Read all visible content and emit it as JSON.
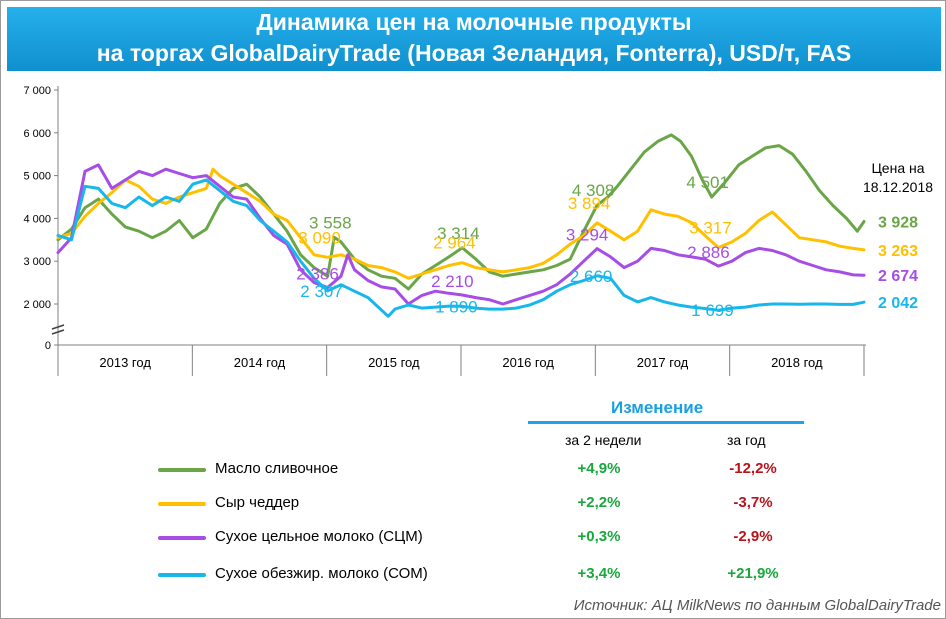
{
  "title_line1": "Динамика цен на молочные продукты",
  "title_line2": "на торгах GlobalDairyTrade (Новая Зеландия, Fonterra), USD/т, FAS",
  "price_note": [
    "Цена на",
    "18.12.2018"
  ],
  "source": "Источник: АЦ MilkNews по данным GlobalDairyTrade",
  "table": {
    "header": "Изменение",
    "col_2weeks": "за 2 недели",
    "col_year": "за год",
    "positive_color": "#18a83b",
    "negative_color": "#b8141b"
  },
  "chart_data": {
    "type": "line",
    "x_unit": "year",
    "xlim": [
      2013.0,
      2018.98
    ],
    "ylim": [
      0,
      7000
    ],
    "yticks": [
      0,
      2000,
      3000,
      4000,
      5000,
      6000,
      7000
    ],
    "ytick_labels": [
      "0",
      "2 000",
      "3 000",
      "4 000",
      "5 000",
      "6 000",
      "7 000"
    ],
    "y_axis_break": true,
    "x_categories": [
      "2013 год",
      "2014 год",
      "2015 год",
      "2016 год",
      "2017 год",
      "2018 год"
    ],
    "legend_position": "bottom-left",
    "series": [
      {
        "name": "Масло сливочное",
        "color": "#6aa647",
        "change_2weeks": "+4,9%",
        "change_year": "-12,2%",
        "points": [
          [
            2013.0,
            3500
          ],
          [
            2013.1,
            3750
          ],
          [
            2013.2,
            4250
          ],
          [
            2013.3,
            4450
          ],
          [
            2013.4,
            4100
          ],
          [
            2013.5,
            3800
          ],
          [
            2013.6,
            3700
          ],
          [
            2013.7,
            3550
          ],
          [
            2013.8,
            3700
          ],
          [
            2013.9,
            3950
          ],
          [
            2014.0,
            3550
          ],
          [
            2014.1,
            3750
          ],
          [
            2014.2,
            4350
          ],
          [
            2014.3,
            4700
          ],
          [
            2014.4,
            4800
          ],
          [
            2014.5,
            4500
          ],
          [
            2014.6,
            4100
          ],
          [
            2014.7,
            3700
          ],
          [
            2014.8,
            3150
          ],
          [
            2014.9,
            2850
          ],
          [
            2015.0,
            2650
          ],
          [
            2015.05,
            3558
          ],
          [
            2015.1,
            3450
          ],
          [
            2015.2,
            3050
          ],
          [
            2015.3,
            2800
          ],
          [
            2015.4,
            2650
          ],
          [
            2015.5,
            2600
          ],
          [
            2015.6,
            2350
          ],
          [
            2015.7,
            2700
          ],
          [
            2015.8,
            2900
          ],
          [
            2015.9,
            3100
          ],
          [
            2016.0,
            3314
          ],
          [
            2016.1,
            3050
          ],
          [
            2016.2,
            2750
          ],
          [
            2016.3,
            2650
          ],
          [
            2016.4,
            2700
          ],
          [
            2016.5,
            2750
          ],
          [
            2016.6,
            2800
          ],
          [
            2016.7,
            2900
          ],
          [
            2016.8,
            3050
          ],
          [
            2016.9,
            3700
          ],
          [
            2017.0,
            4308
          ],
          [
            2017.08,
            4500
          ],
          [
            2017.15,
            4750
          ],
          [
            2017.25,
            5150
          ],
          [
            2017.35,
            5550
          ],
          [
            2017.45,
            5800
          ],
          [
            2017.55,
            5950
          ],
          [
            2017.62,
            5800
          ],
          [
            2017.7,
            5450
          ],
          [
            2017.78,
            4900
          ],
          [
            2017.85,
            4501
          ],
          [
            2017.95,
            4850
          ],
          [
            2018.05,
            5250
          ],
          [
            2018.15,
            5450
          ],
          [
            2018.25,
            5650
          ],
          [
            2018.35,
            5700
          ],
          [
            2018.45,
            5500
          ],
          [
            2018.55,
            5100
          ],
          [
            2018.65,
            4650
          ],
          [
            2018.75,
            4300
          ],
          [
            2018.85,
            4000
          ],
          [
            2018.93,
            3700
          ],
          [
            2018.98,
            3928
          ]
        ],
        "labels": [
          {
            "x": 2015.05,
            "y": 3558,
            "text": "3 558"
          },
          {
            "x": 2016.0,
            "y": 3314,
            "text": "3 314"
          },
          {
            "x": 2017.0,
            "y": 4308,
            "text": "4 308"
          },
          {
            "x": 2017.85,
            "y": 4501,
            "text": "4 501"
          },
          {
            "x": 2018.98,
            "y": 3928,
            "text": "3 928",
            "final": true
          }
        ]
      },
      {
        "name": "Сыр чеддер",
        "color": "#ffc000",
        "change_2weeks": "+2,2%",
        "change_year": "-3,7%",
        "points": [
          [
            2013.0,
            3550
          ],
          [
            2013.1,
            3650
          ],
          [
            2013.2,
            4050
          ],
          [
            2013.3,
            4350
          ],
          [
            2013.4,
            4600
          ],
          [
            2013.5,
            4900
          ],
          [
            2013.6,
            4750
          ],
          [
            2013.7,
            4450
          ],
          [
            2013.8,
            4350
          ],
          [
            2013.9,
            4500
          ],
          [
            2014.0,
            4600
          ],
          [
            2014.1,
            4700
          ],
          [
            2014.15,
            5150
          ],
          [
            2014.2,
            5000
          ],
          [
            2014.3,
            4800
          ],
          [
            2014.4,
            4600
          ],
          [
            2014.5,
            4400
          ],
          [
            2014.6,
            4100
          ],
          [
            2014.7,
            3950
          ],
          [
            2014.8,
            3550
          ],
          [
            2014.9,
            3150
          ],
          [
            2015.0,
            3090
          ],
          [
            2015.1,
            3150
          ],
          [
            2015.2,
            3050
          ],
          [
            2015.3,
            2900
          ],
          [
            2015.4,
            2850
          ],
          [
            2015.5,
            2750
          ],
          [
            2015.6,
            2600
          ],
          [
            2015.7,
            2700
          ],
          [
            2015.8,
            2800
          ],
          [
            2015.9,
            2900
          ],
          [
            2016.0,
            2964
          ],
          [
            2016.1,
            2850
          ],
          [
            2016.2,
            2800
          ],
          [
            2016.3,
            2750
          ],
          [
            2016.4,
            2800
          ],
          [
            2016.5,
            2850
          ],
          [
            2016.6,
            2950
          ],
          [
            2016.7,
            3150
          ],
          [
            2016.8,
            3400
          ],
          [
            2016.9,
            3600
          ],
          [
            2017.0,
            3894
          ],
          [
            2017.1,
            3700
          ],
          [
            2017.2,
            3500
          ],
          [
            2017.3,
            3700
          ],
          [
            2017.4,
            4200
          ],
          [
            2017.5,
            4100
          ],
          [
            2017.6,
            4050
          ],
          [
            2017.7,
            3900
          ],
          [
            2017.8,
            3600
          ],
          [
            2017.9,
            3317
          ],
          [
            2018.0,
            3450
          ],
          [
            2018.1,
            3650
          ],
          [
            2018.2,
            3950
          ],
          [
            2018.3,
            4150
          ],
          [
            2018.4,
            3850
          ],
          [
            2018.5,
            3550
          ],
          [
            2018.6,
            3500
          ],
          [
            2018.7,
            3450
          ],
          [
            2018.8,
            3350
          ],
          [
            2018.9,
            3300
          ],
          [
            2018.98,
            3263
          ]
        ],
        "labels": [
          {
            "x": 2015.0,
            "y": 3090,
            "text": "3 090"
          },
          {
            "x": 2016.0,
            "y": 2964,
            "text": "2 964"
          },
          {
            "x": 2017.0,
            "y": 3894,
            "text": "3 894"
          },
          {
            "x": 2017.9,
            "y": 3317,
            "text": "3 317"
          },
          {
            "x": 2018.98,
            "y": 3263,
            "text": "3 263",
            "final": true
          }
        ]
      },
      {
        "name": "Сухое цельное молоко (СЦМ)",
        "color": "#a64de6",
        "change_2weeks": "+0,3%",
        "change_year": "-2,9%",
        "points": [
          [
            2013.0,
            3200
          ],
          [
            2013.1,
            3550
          ],
          [
            2013.2,
            5100
          ],
          [
            2013.3,
            5250
          ],
          [
            2013.4,
            4700
          ],
          [
            2013.5,
            4900
          ],
          [
            2013.6,
            5100
          ],
          [
            2013.7,
            5000
          ],
          [
            2013.8,
            5150
          ],
          [
            2013.9,
            5050
          ],
          [
            2014.0,
            4950
          ],
          [
            2014.1,
            5000
          ],
          [
            2014.2,
            4750
          ],
          [
            2014.3,
            4500
          ],
          [
            2014.4,
            4450
          ],
          [
            2014.5,
            4000
          ],
          [
            2014.6,
            3600
          ],
          [
            2014.7,
            3400
          ],
          [
            2014.8,
            2800
          ],
          [
            2014.9,
            2500
          ],
          [
            2015.0,
            2386
          ],
          [
            2015.1,
            2650
          ],
          [
            2015.15,
            3150
          ],
          [
            2015.2,
            2800
          ],
          [
            2015.3,
            2550
          ],
          [
            2015.4,
            2400
          ],
          [
            2015.5,
            2350
          ],
          [
            2015.6,
            2000
          ],
          [
            2015.7,
            2200
          ],
          [
            2015.8,
            2300
          ],
          [
            2015.9,
            2250
          ],
          [
            2016.0,
            2210
          ],
          [
            2016.1,
            2150
          ],
          [
            2016.2,
            2100
          ],
          [
            2016.3,
            2000
          ],
          [
            2016.4,
            2100
          ],
          [
            2016.5,
            2200
          ],
          [
            2016.6,
            2300
          ],
          [
            2016.7,
            2450
          ],
          [
            2016.8,
            2700
          ],
          [
            2016.9,
            3000
          ],
          [
            2017.0,
            3294
          ],
          [
            2017.1,
            3100
          ],
          [
            2017.2,
            2850
          ],
          [
            2017.3,
            3000
          ],
          [
            2017.4,
            3300
          ],
          [
            2017.5,
            3250
          ],
          [
            2017.6,
            3150
          ],
          [
            2017.7,
            3100
          ],
          [
            2017.8,
            3050
          ],
          [
            2017.9,
            2886
          ],
          [
            2018.0,
            3000
          ],
          [
            2018.1,
            3200
          ],
          [
            2018.2,
            3300
          ],
          [
            2018.3,
            3250
          ],
          [
            2018.4,
            3150
          ],
          [
            2018.5,
            3000
          ],
          [
            2018.6,
            2900
          ],
          [
            2018.7,
            2800
          ],
          [
            2018.8,
            2750
          ],
          [
            2018.9,
            2680
          ],
          [
            2018.98,
            2674
          ]
        ],
        "labels": [
          {
            "x": 2015.0,
            "y": 2386,
            "text": "2 386"
          },
          {
            "x": 2016.0,
            "y": 2210,
            "text": "2 210"
          },
          {
            "x": 2017.0,
            "y": 3294,
            "text": "3 294"
          },
          {
            "x": 2017.9,
            "y": 2886,
            "text": "2 886"
          },
          {
            "x": 2018.98,
            "y": 2674,
            "text": "2 674",
            "final": true
          }
        ]
      },
      {
        "name": "Сухое обезжир. молоко (СОМ)",
        "color": "#17b7ec",
        "change_2weeks": "+3,4%",
        "change_year": "+21,9%",
        "points": [
          [
            2013.0,
            3600
          ],
          [
            2013.1,
            3500
          ],
          [
            2013.2,
            4750
          ],
          [
            2013.3,
            4700
          ],
          [
            2013.4,
            4350
          ],
          [
            2013.5,
            4250
          ],
          [
            2013.6,
            4500
          ],
          [
            2013.7,
            4300
          ],
          [
            2013.8,
            4500
          ],
          [
            2013.9,
            4400
          ],
          [
            2014.0,
            4800
          ],
          [
            2014.1,
            4900
          ],
          [
            2014.2,
            4650
          ],
          [
            2014.3,
            4400
          ],
          [
            2014.4,
            4300
          ],
          [
            2014.5,
            3950
          ],
          [
            2014.6,
            3700
          ],
          [
            2014.7,
            3450
          ],
          [
            2014.8,
            3000
          ],
          [
            2014.9,
            2600
          ],
          [
            2015.0,
            2307
          ],
          [
            2015.1,
            2450
          ],
          [
            2015.2,
            2300
          ],
          [
            2015.3,
            2150
          ],
          [
            2015.4,
            1700
          ],
          [
            2015.45,
            1400
          ],
          [
            2015.5,
            1750
          ],
          [
            2015.6,
            1950
          ],
          [
            2015.7,
            1800
          ],
          [
            2015.8,
            1850
          ],
          [
            2015.9,
            1900
          ],
          [
            2016.0,
            1890
          ],
          [
            2016.1,
            1800
          ],
          [
            2016.2,
            1750
          ],
          [
            2016.3,
            1750
          ],
          [
            2016.4,
            1800
          ],
          [
            2016.5,
            1950
          ],
          [
            2016.6,
            2100
          ],
          [
            2016.7,
            2300
          ],
          [
            2016.8,
            2450
          ],
          [
            2016.9,
            2550
          ],
          [
            2017.0,
            2660
          ],
          [
            2017.1,
            2600
          ],
          [
            2017.2,
            2200
          ],
          [
            2017.3,
            2050
          ],
          [
            2017.4,
            2150
          ],
          [
            2017.5,
            2050
          ],
          [
            2017.6,
            1950
          ],
          [
            2017.7,
            1850
          ],
          [
            2017.8,
            1780
          ],
          [
            2017.9,
            1699
          ],
          [
            2018.0,
            1800
          ],
          [
            2018.1,
            1850
          ],
          [
            2018.2,
            1950
          ],
          [
            2018.3,
            2000
          ],
          [
            2018.4,
            2000
          ],
          [
            2018.5,
            1990
          ],
          [
            2018.6,
            2000
          ],
          [
            2018.7,
            2000
          ],
          [
            2018.8,
            1980
          ],
          [
            2018.9,
            1980
          ],
          [
            2018.98,
            2042
          ]
        ],
        "labels": [
          {
            "x": 2015.0,
            "y": 2307,
            "text": "2 307"
          },
          {
            "x": 2016.0,
            "y": 1890,
            "text": "1 890"
          },
          {
            "x": 2017.0,
            "y": 2660,
            "text": "2 660"
          },
          {
            "x": 2017.9,
            "y": 1699,
            "text": "1 699"
          },
          {
            "x": 2018.98,
            "y": 2042,
            "text": "2 042",
            "final": true
          }
        ]
      }
    ]
  }
}
